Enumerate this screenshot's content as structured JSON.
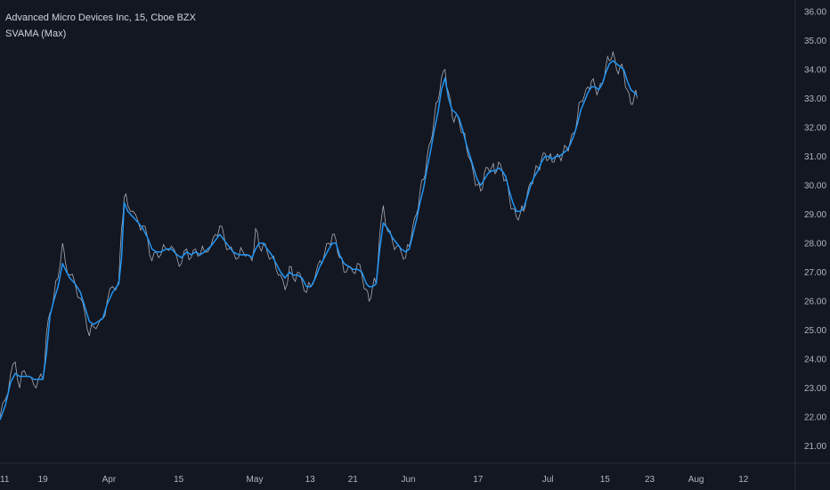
{
  "chart_data": {
    "type": "line",
    "title": "Advanced Micro Devices Inc, 15, Cboe BZX",
    "indicator_label": "SVAMA (Max)",
    "y_ticks": [
      "21.00",
      "22.00",
      "23.00",
      "24.00",
      "25.00",
      "26.00",
      "27.00",
      "28.00",
      "29.00",
      "30.00",
      "31.00",
      "32.00",
      "33.00",
      "34.00",
      "35.00",
      "36.00"
    ],
    "ylim": [
      20.4,
      36.4
    ],
    "x_ticks": [
      "11",
      "19",
      "Apr",
      "15",
      "May",
      "13",
      "21",
      "Jun",
      "17",
      "Jul",
      "15",
      "23",
      "Aug",
      "12"
    ],
    "x_tick_index": [
      0,
      48,
      122,
      200,
      285,
      347,
      395,
      457,
      535,
      613,
      677,
      727,
      779,
      832
    ],
    "xlim": [
      0,
      890
    ],
    "grid": false,
    "colors": {
      "background": "#131722",
      "price": "#c3c6ce",
      "svama": "#2196f3",
      "axis_text": "#b2b5be",
      "axis_line": "#2a2e39"
    },
    "series": [
      {
        "name": "Advanced Micro Devices Inc",
        "style": "price",
        "points": [
          [
            0,
            22.0
          ],
          [
            6,
            22.6
          ],
          [
            12,
            23.5
          ],
          [
            17,
            23.9
          ],
          [
            22,
            23.0
          ],
          [
            27,
            23.6
          ],
          [
            33,
            23.4
          ],
          [
            38,
            23.1
          ],
          [
            43,
            23.3
          ],
          [
            48,
            23.3
          ],
          [
            52,
            24.9
          ],
          [
            56,
            25.6
          ],
          [
            60,
            26.1
          ],
          [
            65,
            26.8
          ],
          [
            70,
            28.0
          ],
          [
            73,
            27.4
          ],
          [
            78,
            26.9
          ],
          [
            84,
            26.6
          ],
          [
            90,
            26.1
          ],
          [
            95,
            25.6
          ],
          [
            100,
            24.8
          ],
          [
            105,
            25.1
          ],
          [
            110,
            25.2
          ],
          [
            115,
            25.4
          ],
          [
            120,
            26.0
          ],
          [
            126,
            26.5
          ],
          [
            133,
            26.7
          ],
          [
            136,
            28.5
          ],
          [
            139,
            29.6
          ],
          [
            143,
            29.3
          ],
          [
            149,
            29.1
          ],
          [
            155,
            28.7
          ],
          [
            160,
            28.6
          ],
          [
            165,
            28.2
          ],
          [
            170,
            27.4
          ],
          [
            175,
            27.7
          ],
          [
            180,
            27.6
          ],
          [
            186,
            27.8
          ],
          [
            192,
            27.9
          ],
          [
            198,
            27.5
          ],
          [
            203,
            27.3
          ],
          [
            209,
            27.8
          ],
          [
            214,
            27.5
          ],
          [
            219,
            27.8
          ],
          [
            224,
            27.6
          ],
          [
            229,
            27.7
          ],
          [
            236,
            27.9
          ],
          [
            241,
            28.3
          ],
          [
            246,
            28.6
          ],
          [
            251,
            28.2
          ],
          [
            256,
            27.8
          ],
          [
            261,
            27.7
          ],
          [
            267,
            27.5
          ],
          [
            272,
            27.7
          ],
          [
            277,
            27.6
          ],
          [
            282,
            27.4
          ],
          [
            286,
            28.5
          ],
          [
            290,
            27.9
          ],
          [
            295,
            28.0
          ],
          [
            299,
            27.7
          ],
          [
            304,
            27.5
          ],
          [
            309,
            27.1
          ],
          [
            314,
            26.9
          ],
          [
            319,
            26.4
          ],
          [
            324,
            27.2
          ],
          [
            328,
            26.8
          ],
          [
            333,
            27.0
          ],
          [
            338,
            26.7
          ],
          [
            343,
            26.3
          ],
          [
            348,
            26.5
          ],
          [
            353,
            26.9
          ],
          [
            358,
            27.4
          ],
          [
            363,
            27.6
          ],
          [
            368,
            28.0
          ],
          [
            372,
            28.3
          ],
          [
            376,
            28.1
          ],
          [
            380,
            27.5
          ],
          [
            385,
            27.0
          ],
          [
            390,
            27.2
          ],
          [
            395,
            27.0
          ],
          [
            400,
            27.3
          ],
          [
            405,
            26.9
          ],
          [
            410,
            26.4
          ],
          [
            413,
            26.0
          ],
          [
            417,
            26.5
          ],
          [
            421,
            26.6
          ],
          [
            425,
            28.3
          ],
          [
            429,
            29.3
          ],
          [
            434,
            28.4
          ],
          [
            439,
            28.1
          ],
          [
            444,
            27.9
          ],
          [
            449,
            27.7
          ],
          [
            454,
            27.5
          ],
          [
            458,
            27.9
          ],
          [
            462,
            28.6
          ],
          [
            466,
            29.0
          ],
          [
            470,
            29.8
          ],
          [
            474,
            30.2
          ],
          [
            478,
            31.0
          ],
          [
            482,
            31.5
          ],
          [
            486,
            32.3
          ],
          [
            490,
            32.9
          ],
          [
            494,
            33.7
          ],
          [
            498,
            34.0
          ],
          [
            502,
            33.2
          ],
          [
            506,
            32.4
          ],
          [
            510,
            32.4
          ],
          [
            514,
            32.2
          ],
          [
            518,
            31.8
          ],
          [
            522,
            31.3
          ],
          [
            526,
            30.9
          ],
          [
            530,
            30.4
          ],
          [
            534,
            30.0
          ],
          [
            538,
            29.8
          ],
          [
            542,
            30.4
          ],
          [
            546,
            30.6
          ],
          [
            550,
            30.6
          ],
          [
            554,
            30.4
          ],
          [
            558,
            30.8
          ],
          [
            562,
            30.5
          ],
          [
            566,
            30.2
          ],
          [
            570,
            29.6
          ],
          [
            574,
            29.2
          ],
          [
            578,
            28.9
          ],
          [
            582,
            29.0
          ],
          [
            586,
            29.1
          ],
          [
            590,
            29.7
          ],
          [
            594,
            30.1
          ],
          [
            598,
            30.4
          ],
          [
            602,
            30.6
          ],
          [
            606,
            30.9
          ],
          [
            610,
            31.1
          ],
          [
            614,
            30.9
          ],
          [
            618,
            30.8
          ],
          [
            622,
            31.0
          ],
          [
            626,
            31.0
          ],
          [
            630,
            31.1
          ],
          [
            634,
            31.3
          ],
          [
            638,
            31.5
          ],
          [
            642,
            31.8
          ],
          [
            646,
            32.3
          ],
          [
            650,
            32.9
          ],
          [
            654,
            33.1
          ],
          [
            658,
            33.4
          ],
          [
            662,
            33.6
          ],
          [
            666,
            33.4
          ],
          [
            670,
            33.3
          ],
          [
            674,
            33.5
          ],
          [
            678,
            34.1
          ],
          [
            682,
            34.3
          ],
          [
            686,
            34.6
          ],
          [
            690,
            34.0
          ],
          [
            694,
            34.1
          ],
          [
            698,
            33.9
          ],
          [
            702,
            33.3
          ],
          [
            706,
            32.8
          ],
          [
            710,
            33.1
          ],
          [
            713,
            33.0
          ]
        ]
      },
      {
        "name": "SVAMA (Max)",
        "style": "svama",
        "points": [
          [
            0,
            21.9
          ],
          [
            6,
            22.4
          ],
          [
            12,
            23.2
          ],
          [
            17,
            23.5
          ],
          [
            22,
            23.4
          ],
          [
            27,
            23.4
          ],
          [
            33,
            23.4
          ],
          [
            38,
            23.3
          ],
          [
            43,
            23.3
          ],
          [
            48,
            23.3
          ],
          [
            52,
            24.2
          ],
          [
            56,
            25.5
          ],
          [
            60,
            26.0
          ],
          [
            65,
            26.5
          ],
          [
            70,
            27.3
          ],
          [
            73,
            27.1
          ],
          [
            78,
            26.8
          ],
          [
            84,
            26.6
          ],
          [
            90,
            26.3
          ],
          [
            95,
            25.8
          ],
          [
            100,
            25.3
          ],
          [
            105,
            25.2
          ],
          [
            110,
            25.3
          ],
          [
            115,
            25.4
          ],
          [
            120,
            25.9
          ],
          [
            126,
            26.3
          ],
          [
            133,
            26.6
          ],
          [
            136,
            27.5
          ],
          [
            139,
            29.4
          ],
          [
            143,
            29.1
          ],
          [
            149,
            28.9
          ],
          [
            155,
            28.7
          ],
          [
            160,
            28.5
          ],
          [
            165,
            28.2
          ],
          [
            170,
            27.8
          ],
          [
            175,
            27.7
          ],
          [
            180,
            27.7
          ],
          [
            186,
            27.8
          ],
          [
            192,
            27.8
          ],
          [
            198,
            27.6
          ],
          [
            203,
            27.5
          ],
          [
            209,
            27.7
          ],
          [
            214,
            27.6
          ],
          [
            219,
            27.7
          ],
          [
            224,
            27.6
          ],
          [
            229,
            27.7
          ],
          [
            236,
            27.9
          ],
          [
            241,
            28.1
          ],
          [
            246,
            28.3
          ],
          [
            251,
            28.1
          ],
          [
            256,
            27.9
          ],
          [
            261,
            27.7
          ],
          [
            267,
            27.6
          ],
          [
            272,
            27.6
          ],
          [
            277,
            27.6
          ],
          [
            282,
            27.5
          ],
          [
            286,
            27.8
          ],
          [
            290,
            28.0
          ],
          [
            295,
            28.0
          ],
          [
            299,
            27.8
          ],
          [
            304,
            27.6
          ],
          [
            309,
            27.3
          ],
          [
            314,
            27.0
          ],
          [
            319,
            26.8
          ],
          [
            324,
            27.0
          ],
          [
            328,
            26.9
          ],
          [
            333,
            26.9
          ],
          [
            338,
            26.8
          ],
          [
            343,
            26.5
          ],
          [
            348,
            26.5
          ],
          [
            353,
            26.8
          ],
          [
            358,
            27.2
          ],
          [
            363,
            27.5
          ],
          [
            368,
            27.8
          ],
          [
            372,
            28.0
          ],
          [
            376,
            28.0
          ],
          [
            380,
            27.6
          ],
          [
            385,
            27.3
          ],
          [
            390,
            27.2
          ],
          [
            395,
            27.1
          ],
          [
            400,
            27.1
          ],
          [
            405,
            27.0
          ],
          [
            410,
            26.6
          ],
          [
            413,
            26.5
          ],
          [
            417,
            26.5
          ],
          [
            421,
            26.6
          ],
          [
            425,
            27.8
          ],
          [
            429,
            28.7
          ],
          [
            434,
            28.5
          ],
          [
            439,
            28.2
          ],
          [
            444,
            28.0
          ],
          [
            449,
            27.8
          ],
          [
            454,
            27.7
          ],
          [
            458,
            27.8
          ],
          [
            462,
            28.3
          ],
          [
            466,
            28.8
          ],
          [
            470,
            29.4
          ],
          [
            474,
            29.9
          ],
          [
            478,
            30.6
          ],
          [
            482,
            31.2
          ],
          [
            486,
            31.9
          ],
          [
            490,
            32.5
          ],
          [
            494,
            33.3
          ],
          [
            498,
            33.7
          ],
          [
            502,
            33.0
          ],
          [
            506,
            32.6
          ],
          [
            510,
            32.5
          ],
          [
            514,
            32.3
          ],
          [
            518,
            31.9
          ],
          [
            522,
            31.4
          ],
          [
            526,
            31.0
          ],
          [
            530,
            30.6
          ],
          [
            534,
            30.2
          ],
          [
            538,
            30.0
          ],
          [
            542,
            30.2
          ],
          [
            546,
            30.4
          ],
          [
            550,
            30.5
          ],
          [
            554,
            30.5
          ],
          [
            558,
            30.6
          ],
          [
            562,
            30.5
          ],
          [
            566,
            30.3
          ],
          [
            570,
            29.8
          ],
          [
            574,
            29.4
          ],
          [
            578,
            29.1
          ],
          [
            582,
            29.1
          ],
          [
            586,
            29.2
          ],
          [
            590,
            29.6
          ],
          [
            594,
            30.0
          ],
          [
            598,
            30.3
          ],
          [
            602,
            30.5
          ],
          [
            606,
            30.8
          ],
          [
            610,
            31.0
          ],
          [
            614,
            31.0
          ],
          [
            618,
            30.9
          ],
          [
            622,
            31.0
          ],
          [
            626,
            31.0
          ],
          [
            630,
            31.1
          ],
          [
            634,
            31.2
          ],
          [
            638,
            31.4
          ],
          [
            642,
            31.7
          ],
          [
            646,
            32.1
          ],
          [
            650,
            32.6
          ],
          [
            654,
            32.9
          ],
          [
            658,
            33.2
          ],
          [
            662,
            33.4
          ],
          [
            666,
            33.4
          ],
          [
            670,
            33.3
          ],
          [
            674,
            33.5
          ],
          [
            678,
            33.9
          ],
          [
            682,
            34.2
          ],
          [
            686,
            34.3
          ],
          [
            690,
            34.2
          ],
          [
            694,
            34.1
          ],
          [
            698,
            34.0
          ],
          [
            702,
            33.6
          ],
          [
            706,
            33.3
          ],
          [
            710,
            33.2
          ],
          [
            713,
            33.1
          ]
        ]
      }
    ]
  }
}
